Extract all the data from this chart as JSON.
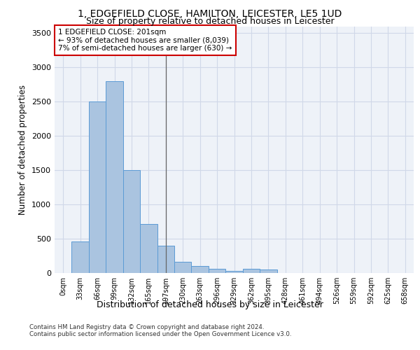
{
  "title_line1": "1, EDGEFIELD CLOSE, HAMILTON, LEICESTER, LE5 1UD",
  "title_line2": "Size of property relative to detached houses in Leicester",
  "xlabel": "Distribution of detached houses by size in Leicester",
  "ylabel": "Number of detached properties",
  "bar_labels": [
    "0sqm",
    "33sqm",
    "66sqm",
    "99sqm",
    "132sqm",
    "165sqm",
    "197sqm",
    "230sqm",
    "263sqm",
    "296sqm",
    "329sqm",
    "362sqm",
    "395sqm",
    "428sqm",
    "461sqm",
    "494sqm",
    "526sqm",
    "559sqm",
    "592sqm",
    "625sqm",
    "658sqm"
  ],
  "bar_values": [
    5,
    460,
    2500,
    2800,
    1500,
    720,
    400,
    160,
    100,
    60,
    30,
    60,
    50,
    5,
    5,
    0,
    0,
    0,
    0,
    0,
    0
  ],
  "bar_color": "#aac4e0",
  "bar_edge_color": "#5b9bd5",
  "grid_color": "#d0d8e8",
  "background_color": "#eef2f8",
  "vline_x": 6.0,
  "vline_color": "#666666",
  "annotation_text": "1 EDGEFIELD CLOSE: 201sqm\n← 93% of detached houses are smaller (8,039)\n7% of semi-detached houses are larger (630) →",
  "annotation_box_color": "#ffffff",
  "annotation_border_color": "#cc0000",
  "ylim": [
    0,
    3600
  ],
  "yticks": [
    0,
    500,
    1000,
    1500,
    2000,
    2500,
    3000,
    3500
  ],
  "footer_line1": "Contains HM Land Registry data © Crown copyright and database right 2024.",
  "footer_line2": "Contains public sector information licensed under the Open Government Licence v3.0."
}
